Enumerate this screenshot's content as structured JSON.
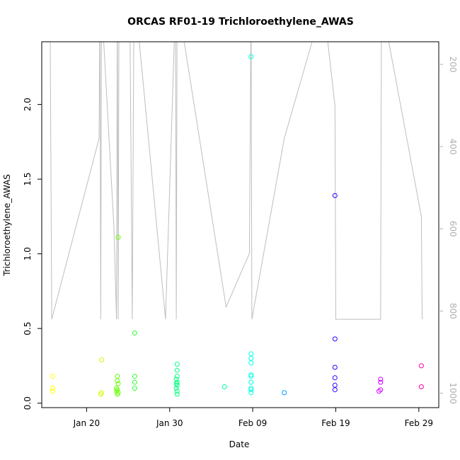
{
  "chart_data": {
    "type": "scatter",
    "title": "ORCAS RF01-19 Trichloroethylene_AWAS",
    "xlabel": "Date",
    "ylabel": "Trichloroethylene_AWAS",
    "x_ticks": [
      "Jan 20",
      "Jan 30",
      "Feb 09",
      "Feb 19",
      "Feb 29"
    ],
    "x_tick_days": [
      20,
      30,
      40,
      50,
      60
    ],
    "xlim_days": [
      14.6,
      62.4
    ],
    "y_ticks": [
      "0.0",
      "0.5",
      "1.0",
      "1.5",
      "2.0"
    ],
    "ylim": [
      -0.03,
      2.42
    ],
    "y2_ticks": [
      "200",
      "400",
      "600",
      "800",
      "1000"
    ],
    "y2lim": [
      1035,
      145
    ],
    "grid": false,
    "points": [
      {
        "day": 15.9,
        "y": 0.18,
        "color": "#FFFF00"
      },
      {
        "day": 15.9,
        "y": 0.1,
        "color": "#FFFF00"
      },
      {
        "day": 15.9,
        "y": 0.08,
        "color": "#FFFF00"
      },
      {
        "day": 21.8,
        "y": 0.29,
        "color": "#CCFF00"
      },
      {
        "day": 21.8,
        "y": 0.07,
        "color": "#CCFF00"
      },
      {
        "day": 21.7,
        "y": 0.06,
        "color": "#CCFF00"
      },
      {
        "day": 23.8,
        "y": 1.11,
        "color": "#66FF00"
      },
      {
        "day": 23.7,
        "y": 0.18,
        "color": "#66FF00"
      },
      {
        "day": 23.7,
        "y": 0.15,
        "color": "#66FF00"
      },
      {
        "day": 23.8,
        "y": 0.13,
        "color": "#66FF00"
      },
      {
        "day": 23.6,
        "y": 0.1,
        "color": "#66FF00"
      },
      {
        "day": 23.7,
        "y": 0.09,
        "color": "#66FF00"
      },
      {
        "day": 23.6,
        "y": 0.08,
        "color": "#66FF00"
      },
      {
        "day": 23.8,
        "y": 0.07,
        "color": "#66FF00"
      },
      {
        "day": 23.7,
        "y": 0.06,
        "color": "#66FF00"
      },
      {
        "day": 25.8,
        "y": 0.47,
        "color": "#33FF33"
      },
      {
        "day": 25.8,
        "y": 0.18,
        "color": "#33FF33"
      },
      {
        "day": 25.8,
        "y": 0.14,
        "color": "#33FF33"
      },
      {
        "day": 25.8,
        "y": 0.1,
        "color": "#33FF33"
      },
      {
        "day": 30.9,
        "y": 0.26,
        "color": "#00FF80"
      },
      {
        "day": 30.9,
        "y": 0.22,
        "color": "#00FF80"
      },
      {
        "day": 30.9,
        "y": 0.18,
        "color": "#00FF80"
      },
      {
        "day": 30.8,
        "y": 0.16,
        "color": "#00FF80"
      },
      {
        "day": 30.9,
        "y": 0.14,
        "color": "#00FF80"
      },
      {
        "day": 30.8,
        "y": 0.13,
        "color": "#00FF80"
      },
      {
        "day": 30.9,
        "y": 0.12,
        "color": "#00FF80"
      },
      {
        "day": 30.8,
        "y": 0.1,
        "color": "#00FF80"
      },
      {
        "day": 30.9,
        "y": 0.08,
        "color": "#00FF80"
      },
      {
        "day": 30.9,
        "y": 0.06,
        "color": "#00FF80"
      },
      {
        "day": 36.6,
        "y": 0.11,
        "color": "#00FF99"
      },
      {
        "day": 39.8,
        "y": 2.32,
        "color": "#00FFE6"
      },
      {
        "day": 39.8,
        "y": 0.33,
        "color": "#00FFE6"
      },
      {
        "day": 39.8,
        "y": 0.3,
        "color": "#00FFE6"
      },
      {
        "day": 39.8,
        "y": 0.27,
        "color": "#00FFE6"
      },
      {
        "day": 39.8,
        "y": 0.19,
        "color": "#00FFE6"
      },
      {
        "day": 39.8,
        "y": 0.18,
        "color": "#00FFE6"
      },
      {
        "day": 39.8,
        "y": 0.14,
        "color": "#00FFE6"
      },
      {
        "day": 39.8,
        "y": 0.1,
        "color": "#00FFE6"
      },
      {
        "day": 39.8,
        "y": 0.09,
        "color": "#00FFE6"
      },
      {
        "day": 39.8,
        "y": 0.07,
        "color": "#00FFE6"
      },
      {
        "day": 43.8,
        "y": 0.07,
        "color": "#0099FF"
      },
      {
        "day": 49.9,
        "y": 1.39,
        "color": "#3300FF"
      },
      {
        "day": 49.9,
        "y": 0.43,
        "color": "#3300FF"
      },
      {
        "day": 49.9,
        "y": 0.24,
        "color": "#3300FF"
      },
      {
        "day": 49.9,
        "y": 0.17,
        "color": "#3300FF"
      },
      {
        "day": 49.9,
        "y": 0.12,
        "color": "#3300FF"
      },
      {
        "day": 49.9,
        "y": 0.09,
        "color": "#3300FF"
      },
      {
        "day": 55.4,
        "y": 0.16,
        "color": "#CC00FF"
      },
      {
        "day": 55.4,
        "y": 0.14,
        "color": "#CC00FF"
      },
      {
        "day": 55.4,
        "y": 0.09,
        "color": "#CC00FF"
      },
      {
        "day": 55.2,
        "y": 0.08,
        "color": "#CC00FF"
      },
      {
        "day": 60.3,
        "y": 0.25,
        "color": "#FF00AA"
      },
      {
        "day": 60.3,
        "y": 0.11,
        "color": "#FF00AA"
      }
    ],
    "pressure_line": {
      "color": "#BEBEBE",
      "days": [
        15.6,
        15.8,
        21.5,
        21.6,
        21.7,
        21.8,
        23.3,
        23.6,
        23.7,
        23.8,
        23.9,
        25.2,
        25.5,
        25.7,
        25.9,
        29.5,
        30.7,
        30.8,
        30.9,
        31.0,
        36.8,
        39.6,
        39.8,
        39.9,
        43.8,
        48.5,
        49.9,
        50.0,
        55.4,
        55.5,
        60.3,
        60.4
      ],
      "pressure": [
        50,
        820,
        380,
        50,
        820,
        50,
        600,
        820,
        50,
        820,
        50,
        50,
        820,
        50,
        50,
        820,
        50,
        820,
        50,
        50,
        790,
        660,
        50,
        820,
        380,
        50,
        300,
        820,
        820,
        50,
        570,
        820
      ]
    },
    "point_colors": [
      "#FFFF00",
      "#CCFF00",
      "#66FF00",
      "#33FF33",
      "#00FF80",
      "#00FF99",
      "#00FFE6",
      "#0099FF",
      "#3300FF",
      "#CC00FF",
      "#FF00AA"
    ]
  }
}
